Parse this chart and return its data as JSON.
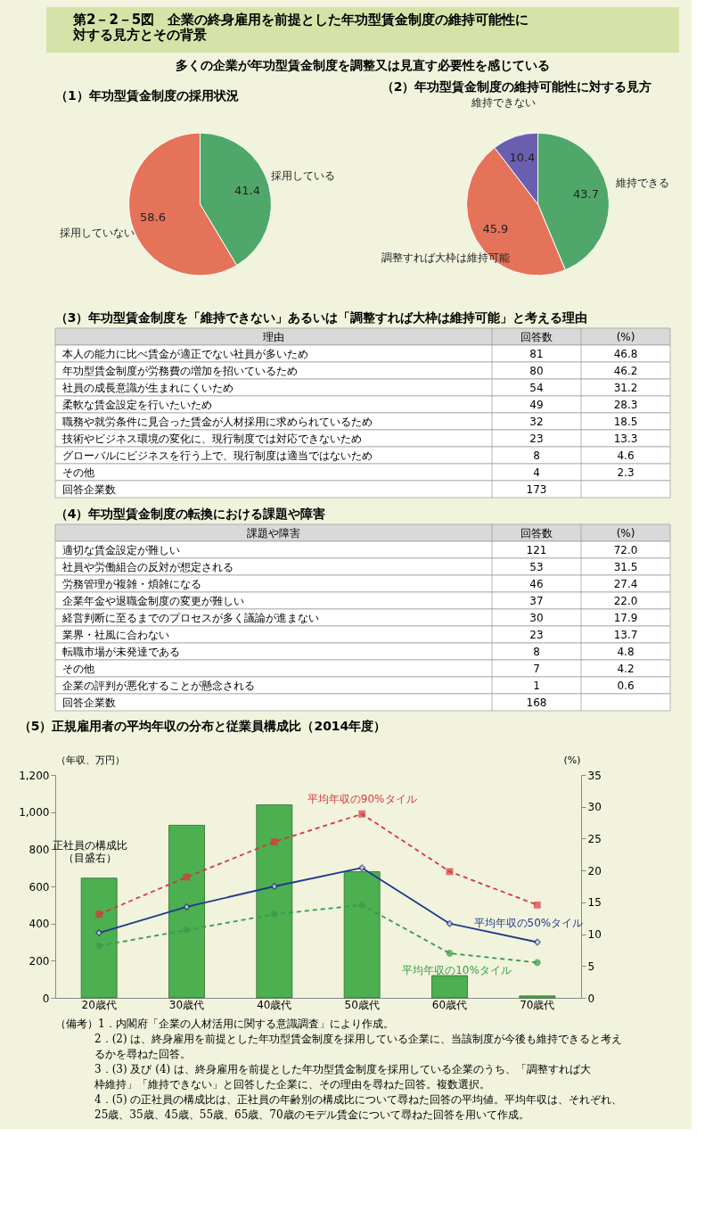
{
  "chart_data": [
    {
      "type": "pie",
      "title": "（1）年功型賃金制度の採用状況",
      "annotations": [
        "第2－2－5図　企業の終身雇用を前提とした年功型賃金制度の維持可能性に対する見方とその背景",
        "多くの企業が年功型賃金制度を調整又は見直す必要性を感じている"
      ],
      "categories": [
        "採用している",
        "採用していない"
      ],
      "values": [
        41.4,
        58.6
      ],
      "colors": [
        "#4fa86a",
        "#e4735a"
      ],
      "data_labels": true
    },
    {
      "type": "pie",
      "title": "（2）年功型賃金制度の維持可能性に対する見方",
      "categories": [
        "維持できる",
        "調整すれば大枠は維持可能",
        "維持できない"
      ],
      "values": [
        43.7,
        45.9,
        10.4
      ],
      "colors": [
        "#4fa86a",
        "#e4735a",
        "#6a5fae"
      ],
      "data_labels": true
    },
    {
      "type": "other",
      "title": "（3）年功型賃金制度を「維持できない」あるいは「調整すれば大枠は維持可能」と考える理由",
      "ylabel": "理由",
      "categories": [
        "本人の能力に比べ賃金が適正でない社員が多いため",
        "年功型賃金制度が労務費の増加を招いているため",
        "社員の成長意識が生まれにくいため",
        "柔軟な賃金設定を行いたいため",
        "職務や就労条件に見合った賃金が人材採用に求められているため",
        "技術やビジネス環境の変化に、現行制度では対応できないため",
        "グローバルにビジネスを行う上で、現行制度は適当ではないため",
        "その他",
        "回答企業数"
      ],
      "series": [
        {
          "name": "回答数",
          "values": [
            81,
            80,
            54,
            49,
            32,
            23,
            8,
            4,
            173
          ]
        },
        {
          "name": "(%)",
          "values": [
            46.8,
            46.2,
            31.2,
            28.3,
            18.5,
            13.3,
            4.6,
            2.3,
            null
          ]
        }
      ],
      "data_labels": true
    },
    {
      "type": "other",
      "title": "（4）年功型賃金制度の転換における課題や障害",
      "ylabel": "課題や障害",
      "categories": [
        "適切な賃金設定が難しい",
        "社員や労働組合の反対が想定される",
        "労務管理が複雑・煩雑になる",
        "企業年金や退職金制度の変更が難しい",
        "経営判断に至るまでのプロセスが多く議論が進まない",
        "業界・社風に合わない",
        "転職市場が未発達である",
        "その他",
        "企業の評判が悪化することが懸念される",
        "回答企業数"
      ],
      "series": [
        {
          "name": "回答数",
          "values": [
            121,
            53,
            46,
            37,
            30,
            23,
            8,
            7,
            1,
            168
          ]
        },
        {
          "name": "(%)",
          "values": [
            72.0,
            31.5,
            27.4,
            22.0,
            17.9,
            13.7,
            4.8,
            4.2,
            0.6,
            null
          ],
          "value_labels": [
            "72.0",
            "31.5",
            "27.4",
            "22.0",
            "17.9",
            "13.7",
            "4.8",
            "4.2",
            "0.6",
            null
          ]
        }
      ],
      "data_labels": true
    },
    {
      "type": "bar",
      "title": "（5）正規雇用者の平均年収の分布と従業員構成比（2014年度）",
      "ylabel": "（年収、万円）",
      "y2label": "(%)",
      "categories": [
        "20歳代",
        "30歳代",
        "40歳代",
        "50歳代",
        "60歳代",
        "70歳代"
      ],
      "ylim": [
        0,
        1200
      ],
      "yticks": [
        0,
        200,
        400,
        600,
        800,
        {
          "value": 1000,
          "label": "1,000"
        },
        {
          "value": 1200,
          "label": "1,200"
        }
      ],
      "y2lim": [
        0,
        35
      ],
      "y2ticks": [
        0,
        5,
        10,
        15,
        20,
        25,
        30,
        35
      ],
      "grid": false,
      "series": [
        {
          "name": "正社員の構成比（目盛右）",
          "type": "bar",
          "axis": "y2",
          "color": "#4caf50",
          "values": [
            18.8,
            27.1,
            30.3,
            19.8,
            3.5,
            0.3
          ]
        },
        {
          "name": "平均年収の90%タイル",
          "type": "line",
          "color": "#d9363e",
          "marker": "square",
          "line_style": "dashed",
          "values": [
            450,
            650,
            840,
            990,
            680,
            500
          ]
        },
        {
          "name": "平均年収の50%タイル",
          "type": "line",
          "color": "#1f3a8a",
          "marker": "diamond",
          "line_style": "solid",
          "values": [
            350,
            490,
            600,
            700,
            400,
            300
          ]
        },
        {
          "name": "平均年収の10%タイル",
          "type": "line",
          "color": "#3a9a4a",
          "marker": "circle",
          "line_style": "dashed",
          "values": [
            280,
            365,
            450,
            500,
            240,
            190
          ]
        }
      ],
      "annotations": [
        "（備考）1．内閣府「企業の人材活用に関する意識調査」により作成。",
        "2．(2) は、終身雇用を前提とした年功型賃金制度を採用している企業に、当該制度が今後も維持できると考えるかを尋ねた回答。",
        "3．(3) 及び (4) は、終身雇用を前提とした年功型賃金制度を採用している企業のうち、「調整すれば大枠維持」「維持できない」と回答した企業に、その理由を尋ねた回答。複数選択。",
        "4．(5) の正社員の構成比は、正社員の年齢別の構成比について尋ねた回答の平均値。平均年収は、それぞれ、25歳、35歳、45歳、55歳、65歳、70歳のモデル賃金について尋ねた回答を用いて作成。"
      ]
    }
  ]
}
